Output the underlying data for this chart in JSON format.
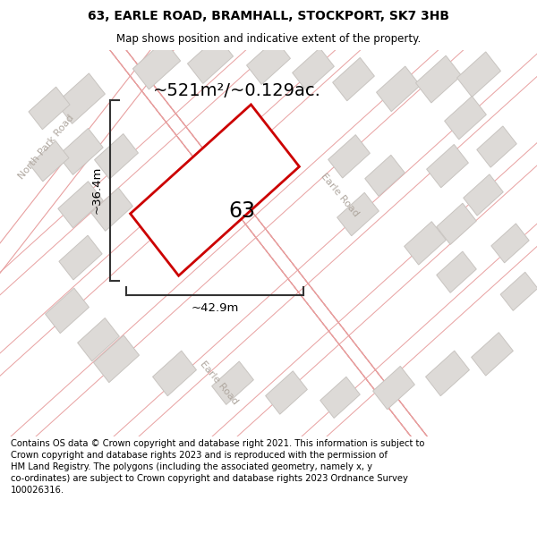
{
  "title": "63, EARLE ROAD, BRAMHALL, STOCKPORT, SK7 3HB",
  "subtitle": "Map shows position and indicative extent of the property.",
  "footer": "Contains OS data © Crown copyright and database right 2021. This information is subject to\nCrown copyright and database rights 2023 and is reproduced with the permission of\nHM Land Registry. The polygons (including the associated geometry, namely x, y\nco-ordinates) are subject to Crown copyright and database rights 2023 Ordnance Survey\n100026316.",
  "area_label": "~521m²/~0.129ac.",
  "width_label": "~42.9m",
  "height_label": "~36.4m",
  "number_label": "63",
  "map_bg": "#f0eeec",
  "road_fill": "#ffffff",
  "road_border": "#e8a0a0",
  "building_fill": "#dddad7",
  "building_ec": "#c8c4c0",
  "plot_color": "#cc0000",
  "dim_color": "#333333",
  "title_fontsize": 10,
  "subtitle_fontsize": 8.5,
  "footer_fontsize": 7.2,
  "area_fontsize": 14,
  "number_fontsize": 17,
  "dim_fontsize": 9.5,
  "road_label_fontsize": 8,
  "road_label_color": "#b0a8a0"
}
